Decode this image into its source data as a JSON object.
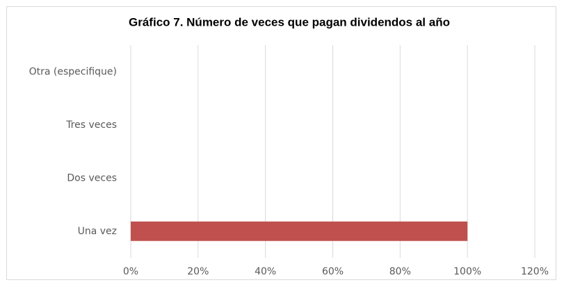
{
  "chart_data": {
    "type": "barh",
    "title": "Gráfico 7. Número de veces que pagan dividendos al año",
    "categories": [
      "Una vez",
      "Dos veces",
      "Tres veces",
      "Otra (especifique)"
    ],
    "values": [
      100,
      0,
      0,
      0
    ],
    "color": "#c0504d",
    "xlim": [
      0,
      120
    ],
    "xticks": [
      {
        "value": 0,
        "label": "0%"
      },
      {
        "value": 20,
        "label": "20%"
      },
      {
        "value": 40,
        "label": "40%"
      },
      {
        "value": 60,
        "label": "60%"
      },
      {
        "value": 80,
        "label": "80%"
      },
      {
        "value": 100,
        "label": "100%"
      },
      {
        "value": 120,
        "label": "120%"
      }
    ],
    "grid": true
  }
}
